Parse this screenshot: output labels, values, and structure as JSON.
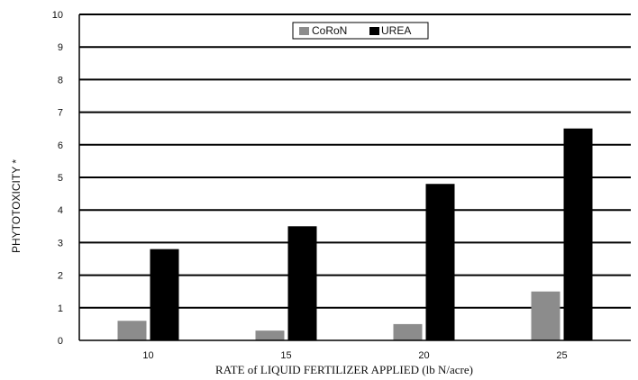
{
  "chart_data": {
    "type": "bar",
    "title": "",
    "xlabel": "RATE of LIQUID FERTILIZER APPLIED (lb N/acre)",
    "ylabel": "PHYTOTOXICITY *",
    "ylim": [
      0,
      10
    ],
    "yticks": [
      0,
      1,
      2,
      3,
      4,
      5,
      6,
      7,
      8,
      9,
      10
    ],
    "grid": true,
    "legend_position": "top-center",
    "categories": [
      "10",
      "15",
      "20",
      "25"
    ],
    "series": [
      {
        "name": "CoRoN",
        "values": [
          0.6,
          0.3,
          0.5,
          1.5
        ],
        "color": "#8c8c8c"
      },
      {
        "name": "UREA",
        "values": [
          2.8,
          3.5,
          4.8,
          6.5
        ],
        "color": "#000000"
      }
    ]
  }
}
